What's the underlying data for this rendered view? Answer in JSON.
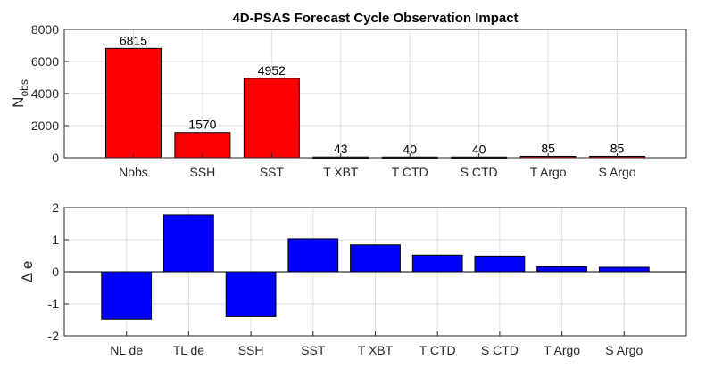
{
  "chart_data": [
    {
      "type": "bar",
      "title": "4D-PSAS Forecast Cycle Observation Impact",
      "ylabel_main": "N",
      "ylabel_sub": "obs",
      "xlabel": "",
      "categories": [
        "Nobs",
        "SSH",
        "SST",
        "T XBT",
        "T CTD",
        "S CTD",
        "T Argo",
        "S Argo"
      ],
      "values": [
        6815,
        1570,
        4952,
        43,
        40,
        40,
        85,
        85
      ],
      "data_labels": [
        "6815",
        "1570",
        "4952",
        "43",
        "40",
        "40",
        "85",
        "85"
      ],
      "ylim": [
        0,
        8000
      ],
      "yticks": [
        "0",
        "2000",
        "4000",
        "6000",
        "8000"
      ],
      "bar_color": "#ff0000",
      "grid": true
    },
    {
      "type": "bar",
      "title": "",
      "ylabel": "Δ e",
      "xlabel": "",
      "categories": [
        "NL de",
        "TL de",
        "SSH",
        "SST",
        "T XBT",
        "T CTD",
        "S CTD",
        "T Argo",
        "S Argo"
      ],
      "values": [
        -1.48,
        1.78,
        -1.4,
        1.03,
        0.84,
        0.52,
        0.49,
        0.16,
        0.14
      ],
      "ylim": [
        -2,
        2
      ],
      "yticks": [
        "-2",
        "-1",
        "0",
        "1",
        "2"
      ],
      "bar_color": "#0000ff",
      "grid": true
    }
  ]
}
